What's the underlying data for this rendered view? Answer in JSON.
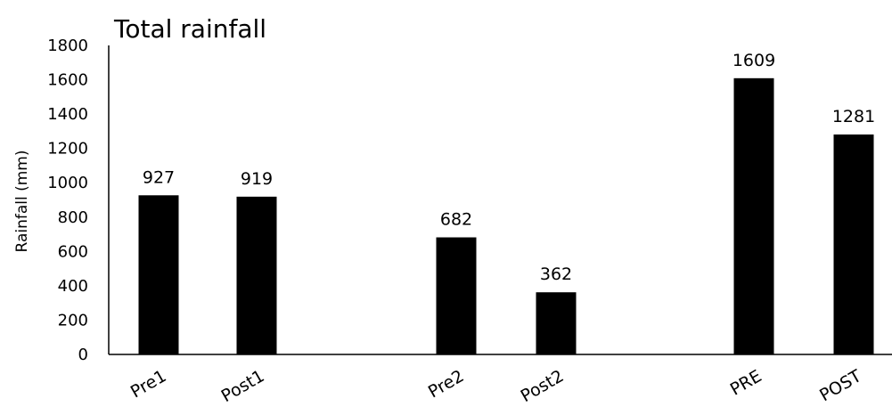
{
  "chart_data": {
    "type": "bar",
    "title": "Total rainfall",
    "xlabel": "",
    "ylabel": "Rainfall (mm)",
    "ylim": [
      0,
      1800
    ],
    "yticks": [
      0,
      200,
      400,
      600,
      800,
      1000,
      1200,
      1400,
      1600,
      1800
    ],
    "categories": [
      "Pre1",
      "Post1",
      "Pre2",
      "Post2",
      "PRE",
      "POST"
    ],
    "values": [
      927,
      919,
      682,
      362,
      1609,
      1281
    ],
    "data_labels": [
      "927",
      "919",
      "682",
      "362",
      "1609",
      "1281"
    ],
    "grid": false,
    "legend": "none",
    "bar_color": "#000000"
  }
}
